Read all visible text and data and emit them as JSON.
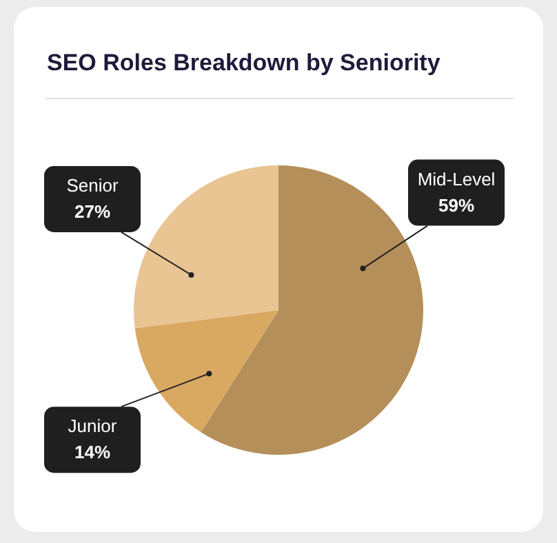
{
  "chart_data": {
    "type": "pie",
    "title": "SEO Roles Breakdown by Seniority",
    "categories": [
      "Mid-Level",
      "Junior",
      "Senior"
    ],
    "values": [
      59,
      14,
      27
    ],
    "value_labels": [
      "59%",
      "14%",
      "27%"
    ],
    "colors": [
      "#b48f5a",
      "#d9a962",
      "#e8c592"
    ],
    "legend": false
  }
}
